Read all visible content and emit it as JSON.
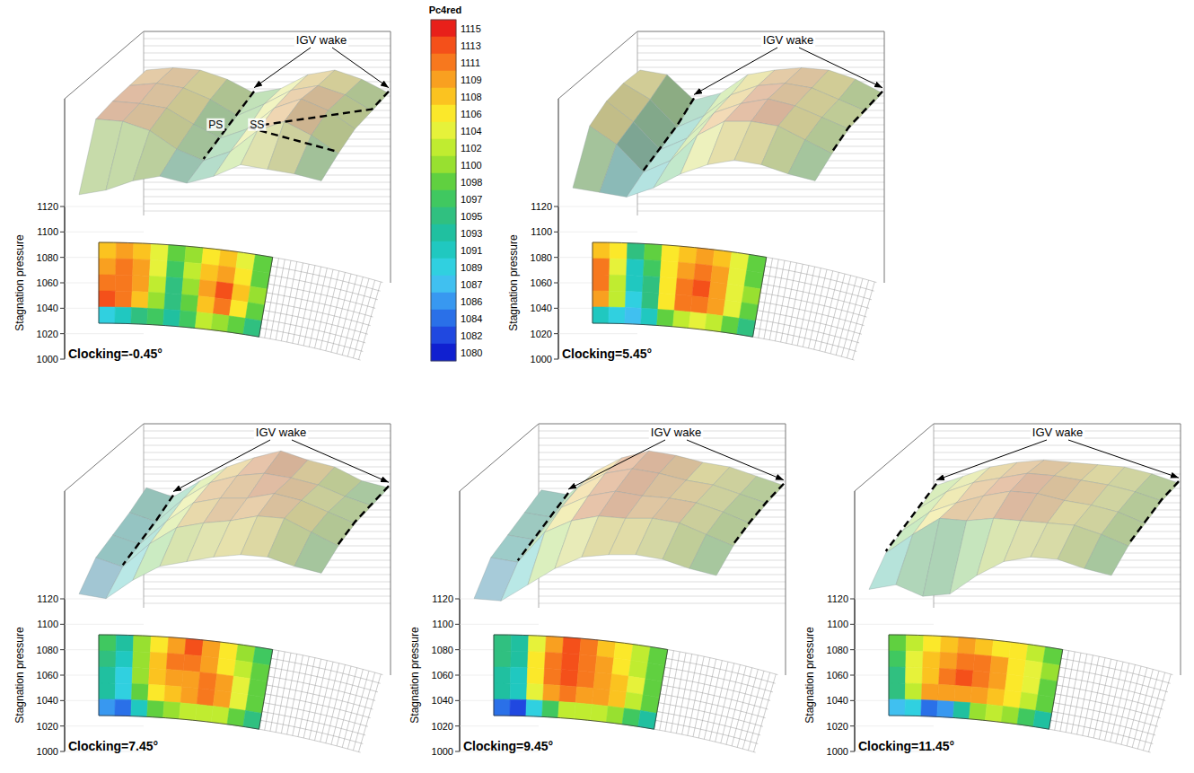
{
  "chart_data": {
    "type": "contour",
    "colorbar": {
      "title": "Pc4red",
      "range": [
        1080,
        1115
      ],
      "ticks": [
        1115,
        1113,
        1111,
        1109,
        1108,
        1106,
        1104,
        1102,
        1100,
        1098,
        1097,
        1095,
        1093,
        1091,
        1089,
        1087,
        1086,
        1084,
        1082,
        1080
      ],
      "colors": [
        "#e8201a",
        "#f4501a",
        "#f7781e",
        "#f9a020",
        "#fbc320",
        "#fbe82a",
        "#e6f23a",
        "#c0ec30",
        "#98e030",
        "#60d040",
        "#40c860",
        "#30c080",
        "#20c0a0",
        "#20c8c0",
        "#30d0e0",
        "#40c0f0",
        "#3898f0",
        "#2a70e8",
        "#2048e0",
        "#1020d0"
      ]
    },
    "panels": [
      {
        "title": "Clocking=-0.45°",
        "zlabel": "Stagnation pressure",
        "zlim": [
          1000,
          1120
        ],
        "zticks": [
          1000,
          1020,
          1040,
          1060,
          1080,
          1100,
          1120
        ],
        "annotations": [
          "IGV wake",
          "PS",
          "SS"
        ],
        "cells": [
          [
            1108,
            1109,
            1108,
            1104,
            1098,
            1100,
            1106,
            1108,
            1104,
            1098
          ],
          [
            1110,
            1111,
            1109,
            1104,
            1097,
            1102,
            1108,
            1110,
            1106,
            1099
          ],
          [
            1112,
            1111,
            1109,
            1102,
            1096,
            1100,
            1109,
            1113,
            1108,
            1100
          ],
          [
            1113,
            1112,
            1108,
            1100,
            1095,
            1099,
            1108,
            1112,
            1106,
            1098
          ],
          [
            1089,
            1091,
            1095,
            1097,
            1094,
            1097,
            1102,
            1100,
            1098,
            1095
          ]
        ]
      },
      {
        "title": "Clocking=5.45°",
        "zlabel": "Stagnation pressure",
        "zlim": [
          1000,
          1120
        ],
        "zticks": [
          1000,
          1020,
          1040,
          1060,
          1080,
          1100,
          1120
        ],
        "annotations": [
          "IGV wake"
        ],
        "cells": [
          [
            1108,
            1106,
            1095,
            1098,
            1106,
            1108,
            1109,
            1108,
            1104,
            1098
          ],
          [
            1111,
            1104,
            1092,
            1097,
            1106,
            1110,
            1111,
            1109,
            1104,
            1099
          ],
          [
            1112,
            1103,
            1091,
            1096,
            1107,
            1111,
            1113,
            1110,
            1105,
            1100
          ],
          [
            1110,
            1102,
            1090,
            1095,
            1106,
            1112,
            1112,
            1110,
            1104,
            1098
          ],
          [
            1092,
            1090,
            1088,
            1092,
            1098,
            1102,
            1104,
            1102,
            1098,
            1095
          ]
        ]
      },
      {
        "title": "Clocking=7.45°",
        "zlabel": "Stagnation pressure",
        "zlim": [
          1000,
          1120
        ],
        "zticks": [
          1000,
          1020,
          1040,
          1060,
          1080,
          1100,
          1120
        ],
        "annotations": [
          "IGV wake"
        ],
        "cells": [
          [
            1097,
            1093,
            1100,
            1106,
            1110,
            1113,
            1109,
            1106,
            1100,
            1097
          ],
          [
            1095,
            1091,
            1101,
            1108,
            1111,
            1112,
            1110,
            1107,
            1102,
            1098
          ],
          [
            1094,
            1090,
            1100,
            1108,
            1110,
            1110,
            1112,
            1109,
            1104,
            1099
          ],
          [
            1093,
            1089,
            1099,
            1106,
            1108,
            1109,
            1111,
            1110,
            1104,
            1098
          ],
          [
            1086,
            1084,
            1092,
            1098,
            1100,
            1102,
            1103,
            1102,
            1098,
            1095
          ]
        ]
      },
      {
        "title": "Clocking=9.45°",
        "zlabel": "Stagnation pressure",
        "zlim": [
          1000,
          1120
        ],
        "zticks": [
          1000,
          1020,
          1040,
          1060,
          1080,
          1100,
          1120
        ],
        "annotations": [
          "IGV wake"
        ],
        "cells": [
          [
            1096,
            1094,
            1104,
            1110,
            1113,
            1111,
            1108,
            1106,
            1102,
            1098
          ],
          [
            1095,
            1093,
            1106,
            1112,
            1114,
            1112,
            1109,
            1107,
            1103,
            1099
          ],
          [
            1094,
            1092,
            1106,
            1111,
            1113,
            1111,
            1110,
            1108,
            1104,
            1099
          ],
          [
            1093,
            1091,
            1104,
            1109,
            1111,
            1110,
            1110,
            1108,
            1103,
            1098
          ],
          [
            1084,
            1083,
            1090,
            1097,
            1102,
            1103,
            1103,
            1101,
            1097,
            1094
          ]
        ]
      },
      {
        "title": "Clocking=11.45°",
        "zlabel": "Stagnation pressure",
        "zlim": [
          1000,
          1120
        ],
        "zticks": [
          1000,
          1020,
          1040,
          1060,
          1080,
          1100,
          1120
        ],
        "annotations": [
          "IGV wake"
        ],
        "cells": [
          [
            1098,
            1102,
            1106,
            1108,
            1109,
            1108,
            1107,
            1106,
            1103,
            1099
          ],
          [
            1097,
            1104,
            1108,
            1110,
            1112,
            1111,
            1109,
            1107,
            1104,
            1100
          ],
          [
            1096,
            1104,
            1108,
            1111,
            1113,
            1112,
            1109,
            1107,
            1104,
            1099
          ],
          [
            1095,
            1103,
            1110,
            1109,
            1110,
            1109,
            1108,
            1107,
            1103,
            1098
          ],
          [
            1088,
            1090,
            1085,
            1086,
            1094,
            1100,
            1102,
            1101,
            1097,
            1094
          ]
        ]
      }
    ]
  }
}
